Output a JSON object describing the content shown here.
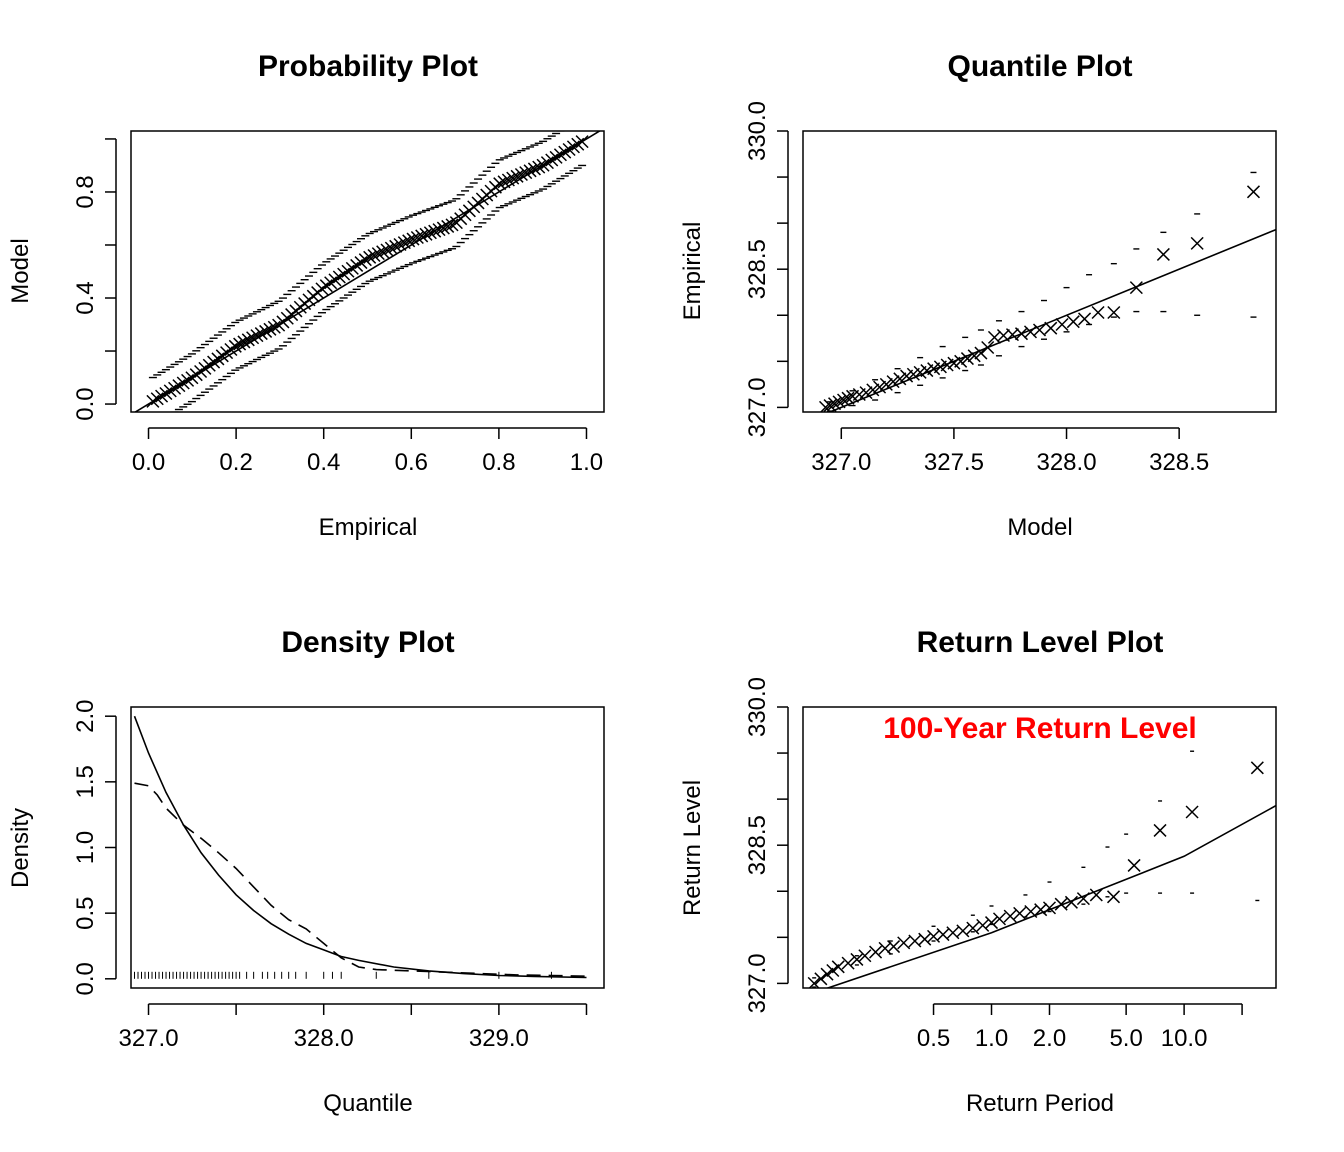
{
  "chart_data": [
    {
      "type": "scatter",
      "title": "Probability Plot",
      "xlabel": "Empirical",
      "ylabel": "Model",
      "xlim": [
        -0.04,
        1.04
      ],
      "ylim": [
        -0.03,
        1.03
      ],
      "xticks": [
        "0.0",
        "0.2",
        "0.4",
        "0.6",
        "0.8",
        "1.0"
      ],
      "yticks": [
        "0.0",
        "0.4",
        "0.8"
      ],
      "reference_line": {
        "slope": 1,
        "intercept": 0
      },
      "points": {
        "n": 100,
        "x_from": 0.01,
        "x_to": 0.99,
        "y_knots": [
          [
            0.0,
            0.0
          ],
          [
            0.1,
            0.1
          ],
          [
            0.2,
            0.22
          ],
          [
            0.3,
            0.3
          ],
          [
            0.4,
            0.44
          ],
          [
            0.5,
            0.55
          ],
          [
            0.6,
            0.62
          ],
          [
            0.7,
            0.68
          ],
          [
            0.8,
            0.83
          ],
          [
            0.9,
            0.9
          ],
          [
            1.0,
            1.0
          ]
        ]
      },
      "band_offset": 0.09
    },
    {
      "type": "scatter",
      "title": "Quantile Plot",
      "xlabel": "Model",
      "ylabel": "Empirical",
      "xlim": [
        326.83,
        328.93
      ],
      "ylim": [
        326.95,
        330.0
      ],
      "xticks": [
        "327.0",
        "327.5",
        "328.0",
        "328.5"
      ],
      "yticks": [
        "327.0",
        "328.5",
        "330.0"
      ],
      "fit_line": {
        "slope": 1,
        "intercept": 0
      },
      "points": [
        [
          326.93,
          327.0
        ],
        [
          326.95,
          327.02
        ],
        [
          326.97,
          327.04
        ],
        [
          326.99,
          327.06
        ],
        [
          327.01,
          327.08
        ],
        [
          327.03,
          327.1
        ],
        [
          327.05,
          327.12
        ],
        [
          327.08,
          327.14
        ],
        [
          327.11,
          327.16
        ],
        [
          327.14,
          327.19
        ],
        [
          327.17,
          327.22
        ],
        [
          327.2,
          327.25
        ],
        [
          327.23,
          327.28
        ],
        [
          327.26,
          327.31
        ],
        [
          327.29,
          327.34
        ],
        [
          327.32,
          327.36
        ],
        [
          327.35,
          327.38
        ],
        [
          327.38,
          327.4
        ],
        [
          327.41,
          327.42
        ],
        [
          327.44,
          327.44
        ],
        [
          327.47,
          327.46
        ],
        [
          327.5,
          327.48
        ],
        [
          327.53,
          327.5
        ],
        [
          327.56,
          327.53
        ],
        [
          327.59,
          327.56
        ],
        [
          327.62,
          327.59
        ],
        [
          327.65,
          327.65
        ],
        [
          327.68,
          327.76
        ],
        [
          327.72,
          327.78
        ],
        [
          327.76,
          327.79
        ],
        [
          327.8,
          327.8
        ],
        [
          327.84,
          327.82
        ],
        [
          327.88,
          327.84
        ],
        [
          327.93,
          327.86
        ],
        [
          327.98,
          327.9
        ],
        [
          328.03,
          327.93
        ],
        [
          328.08,
          327.96
        ],
        [
          328.14,
          328.03
        ],
        [
          328.21,
          328.03
        ],
        [
          328.31,
          328.3
        ],
        [
          328.43,
          328.66
        ],
        [
          328.58,
          328.78
        ],
        [
          328.83,
          329.34
        ]
      ],
      "band_upper": [
        [
          326.95,
          327.06
        ],
        [
          327.05,
          327.18
        ],
        [
          327.15,
          327.3
        ],
        [
          327.25,
          327.42
        ],
        [
          327.35,
          327.54
        ],
        [
          327.45,
          327.66
        ],
        [
          327.55,
          327.76
        ],
        [
          327.62,
          327.84
        ],
        [
          327.7,
          327.94
        ],
        [
          327.8,
          328.04
        ],
        [
          327.9,
          328.16
        ],
        [
          328.0,
          328.3
        ],
        [
          328.1,
          328.44
        ],
        [
          328.21,
          328.56
        ],
        [
          328.31,
          328.72
        ],
        [
          328.43,
          328.9
        ],
        [
          328.58,
          329.1
        ],
        [
          328.83,
          329.55
        ]
      ],
      "band_lower": [
        [
          326.95,
          326.96
        ],
        [
          327.05,
          327.02
        ],
        [
          327.15,
          327.08
        ],
        [
          327.25,
          327.16
        ],
        [
          327.35,
          327.24
        ],
        [
          327.45,
          327.32
        ],
        [
          327.55,
          327.4
        ],
        [
          327.62,
          327.46
        ],
        [
          327.7,
          327.56
        ],
        [
          327.8,
          327.66
        ],
        [
          327.9,
          327.74
        ],
        [
          328.0,
          327.82
        ],
        [
          328.1,
          327.9
        ],
        [
          328.21,
          327.98
        ],
        [
          328.31,
          328.04
        ],
        [
          328.43,
          328.04
        ],
        [
          328.58,
          328.0
        ],
        [
          328.83,
          327.98
        ]
      ]
    },
    {
      "type": "line",
      "title": "Density Plot",
      "xlabel": "Quantile",
      "ylabel": "Density",
      "xlim": [
        326.9,
        329.6
      ],
      "ylim": [
        -0.07,
        2.07
      ],
      "xticks": [
        "327.0",
        "328.0",
        "329.0"
      ],
      "yticks": [
        "0.0",
        "0.5",
        "1.0",
        "1.5",
        "2.0"
      ],
      "series": [
        {
          "style": "solid",
          "points": [
            [
              326.92,
              2.0
            ],
            [
              327.0,
              1.72
            ],
            [
              327.1,
              1.42
            ],
            [
              327.2,
              1.17
            ],
            [
              327.3,
              0.96
            ],
            [
              327.4,
              0.79
            ],
            [
              327.5,
              0.64
            ],
            [
              327.6,
              0.52
            ],
            [
              327.7,
              0.42
            ],
            [
              327.8,
              0.34
            ],
            [
              327.9,
              0.27
            ],
            [
              328.0,
              0.22
            ],
            [
              328.1,
              0.17
            ],
            [
              328.2,
              0.14
            ],
            [
              328.4,
              0.09
            ],
            [
              328.6,
              0.06
            ],
            [
              328.8,
              0.04
            ],
            [
              329.0,
              0.025
            ],
            [
              329.2,
              0.018
            ],
            [
              329.5,
              0.01
            ]
          ]
        },
        {
          "style": "dashed",
          "points": [
            [
              326.92,
              1.49
            ],
            [
              327.0,
              1.47
            ],
            [
              327.05,
              1.4
            ],
            [
              327.1,
              1.3
            ],
            [
              327.2,
              1.17
            ],
            [
              327.3,
              1.07
            ],
            [
              327.4,
              0.96
            ],
            [
              327.5,
              0.84
            ],
            [
              327.6,
              0.7
            ],
            [
              327.7,
              0.56
            ],
            [
              327.8,
              0.45
            ],
            [
              327.9,
              0.38
            ],
            [
              328.0,
              0.27
            ],
            [
              328.1,
              0.16
            ],
            [
              328.2,
              0.09
            ],
            [
              328.3,
              0.07
            ],
            [
              328.5,
              0.06
            ],
            [
              328.7,
              0.05
            ],
            [
              328.9,
              0.04
            ],
            [
              329.1,
              0.03
            ],
            [
              329.3,
              0.025
            ],
            [
              329.5,
              0.02
            ]
          ]
        }
      ],
      "rug": [
        326.92,
        326.94,
        326.96,
        326.98,
        327.0,
        327.02,
        327.04,
        327.06,
        327.08,
        327.1,
        327.12,
        327.14,
        327.16,
        327.18,
        327.2,
        327.22,
        327.24,
        327.26,
        327.28,
        327.3,
        327.32,
        327.34,
        327.36,
        327.38,
        327.4,
        327.42,
        327.44,
        327.46,
        327.48,
        327.5,
        327.52,
        327.56,
        327.6,
        327.65,
        327.68,
        327.72,
        327.76,
        327.8,
        327.84,
        327.9,
        328.0,
        328.05,
        328.1,
        328.3,
        328.6,
        329.0,
        329.3
      ]
    },
    {
      "type": "scatter",
      "title": "Return Level Plot",
      "xlabel": "Return Period",
      "ylabel": "Return Level",
      "xscale": "log",
      "xlim": [
        0.105,
        30
      ],
      "ylim": [
        326.95,
        330.0
      ],
      "xticks": [
        "0.5",
        "1.0",
        "2.0",
        "5.0",
        "10.0"
      ],
      "yticks": [
        "327.0",
        "328.5",
        "330.0"
      ],
      "annotation": {
        "text": "100-Year Return Level",
        "color": "#ff0000"
      },
      "fit_line": [
        [
          0.12,
          326.9
        ],
        [
          1.0,
          327.55
        ],
        [
          10.0,
          328.38
        ],
        [
          30.0,
          328.93
        ]
      ],
      "points": [
        [
          0.12,
          327.0
        ],
        [
          0.13,
          327.05
        ],
        [
          0.14,
          327.1
        ],
        [
          0.15,
          327.14
        ],
        [
          0.16,
          327.18
        ],
        [
          0.18,
          327.22
        ],
        [
          0.2,
          327.26
        ],
        [
          0.22,
          327.3
        ],
        [
          0.25,
          327.34
        ],
        [
          0.28,
          327.38
        ],
        [
          0.31,
          327.4
        ],
        [
          0.35,
          327.44
        ],
        [
          0.4,
          327.46
        ],
        [
          0.45,
          327.48
        ],
        [
          0.5,
          327.51
        ],
        [
          0.56,
          327.53
        ],
        [
          0.63,
          327.55
        ],
        [
          0.71,
          327.57
        ],
        [
          0.8,
          327.6
        ],
        [
          0.9,
          327.63
        ],
        [
          1.0,
          327.66
        ],
        [
          1.1,
          327.7
        ],
        [
          1.25,
          327.73
        ],
        [
          1.4,
          327.76
        ],
        [
          1.6,
          327.78
        ],
        [
          1.8,
          327.8
        ],
        [
          2.0,
          327.82
        ],
        [
          2.3,
          327.86
        ],
        [
          2.6,
          327.88
        ],
        [
          3.0,
          327.92
        ],
        [
          3.5,
          327.96
        ],
        [
          4.3,
          327.94
        ],
        [
          5.5,
          328.28
        ],
        [
          7.5,
          328.66
        ],
        [
          11.0,
          328.86
        ],
        [
          24.0,
          329.34
        ]
      ],
      "band_upper": [
        [
          0.12,
          327.06
        ],
        [
          0.2,
          327.3
        ],
        [
          0.3,
          327.46
        ],
        [
          0.5,
          327.62
        ],
        [
          0.8,
          327.74
        ],
        [
          1.0,
          327.84
        ],
        [
          1.5,
          327.96
        ],
        [
          2.0,
          328.1
        ],
        [
          3.0,
          328.26
        ],
        [
          4.0,
          328.48
        ],
        [
          5.0,
          328.62
        ],
        [
          7.5,
          328.98
        ],
        [
          11.0,
          329.52
        ],
        [
          24.0,
          330.12
        ]
      ],
      "band_lower": [
        [
          0.12,
          326.96
        ],
        [
          0.2,
          327.2
        ],
        [
          0.3,
          327.32
        ],
        [
          0.5,
          327.46
        ],
        [
          0.8,
          327.56
        ],
        [
          1.0,
          327.64
        ],
        [
          1.5,
          327.72
        ],
        [
          2.0,
          327.78
        ],
        [
          3.0,
          327.86
        ],
        [
          4.0,
          327.94
        ],
        [
          5.0,
          327.98
        ],
        [
          7.5,
          327.98
        ],
        [
          11.0,
          327.98
        ],
        [
          24.0,
          327.9
        ]
      ]
    }
  ]
}
